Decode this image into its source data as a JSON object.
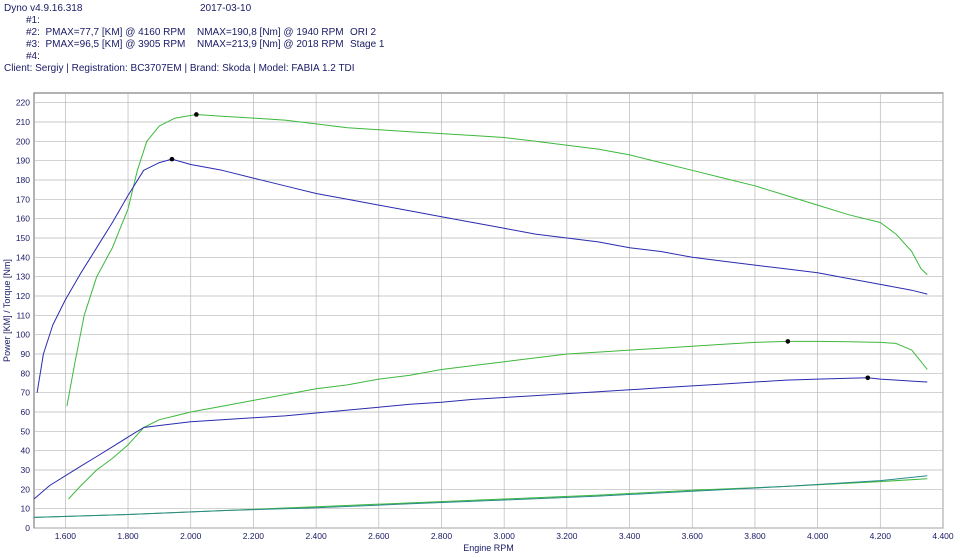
{
  "header": {
    "app": "Dyno v4.9.16.318",
    "date": "2017-03-10",
    "run1": "#1:",
    "run2_p": "#2:  PMAX=77,7 [KM] @ 4160 RPM",
    "run2_n": "NMAX=190,8 [Nm] @ 1940 RPM",
    "run2_name": "ORI 2",
    "run3_p": "#3:  PMAX=96,5 [KM] @ 3905 RPM",
    "run3_n": "NMAX=213,9 [Nm] @ 2018 RPM",
    "run3_name": "Stage 1",
    "run4": "#4:",
    "client": "Client: Sergiy | Registration: BC3707EM | Brand: Skoda | Model: FABIA 1.2 TDI"
  },
  "colors": {
    "stage1": "#3db83d",
    "ori2": "#2b2bb0",
    "loss": "#2a8a8a",
    "grid": "#b8b8b8",
    "text": "#1a1a66"
  },
  "chart_data": {
    "type": "line",
    "xlabel": "Engine RPM",
    "ylabel": "Power [KM] / Torque [Nm]",
    "xlim": [
      1500,
      4400
    ],
    "ylim": [
      0,
      225
    ],
    "xticks": [
      1600,
      1800,
      2000,
      2200,
      2400,
      2600,
      2800,
      3000,
      3200,
      3400,
      3600,
      3800,
      4000,
      4200,
      4400
    ],
    "xtick_labels": [
      "1.600",
      "1.800",
      "2.000",
      "2.200",
      "2.400",
      "2.600",
      "2.800",
      "3.000",
      "3.200",
      "3.400",
      "3.600",
      "3.800",
      "4.000",
      "4.200",
      "4.400"
    ],
    "yticks": [
      0,
      10,
      20,
      30,
      40,
      50,
      60,
      70,
      80,
      90,
      100,
      110,
      120,
      130,
      140,
      150,
      160,
      170,
      180,
      190,
      200,
      210,
      220
    ],
    "grid": true,
    "series": [
      {
        "id": "stage1-torque",
        "color_key": "stage1",
        "x": [
          1605,
          1630,
          1660,
          1700,
          1750,
          1800,
          1830,
          1860,
          1900,
          1950,
          2018,
          2100,
          2200,
          2300,
          2400,
          2500,
          2600,
          2700,
          2800,
          2900,
          3000,
          3100,
          3200,
          3300,
          3400,
          3500,
          3600,
          3700,
          3800,
          3900,
          4000,
          4100,
          4200,
          4250,
          4300,
          4330,
          4350
        ],
        "y": [
          63,
          85,
          110,
          130,
          145,
          165,
          185,
          200,
          208,
          212,
          213.9,
          213,
          212,
          211,
          209,
          207,
          206,
          205,
          204,
          203,
          202,
          200,
          198,
          196,
          193,
          189,
          185,
          181,
          177,
          172,
          167,
          162,
          158,
          152,
          143,
          134,
          131
        ]
      },
      {
        "id": "ori2-torque",
        "color_key": "ori2",
        "x": [
          1510,
          1530,
          1560,
          1600,
          1650,
          1700,
          1750,
          1800,
          1850,
          1900,
          1940,
          2000,
          2100,
          2200,
          2300,
          2400,
          2500,
          2600,
          2700,
          2800,
          2900,
          3000,
          3100,
          3200,
          3300,
          3400,
          3500,
          3600,
          3700,
          3800,
          3900,
          4000,
          4100,
          4200,
          4300,
          4350
        ],
        "y": [
          70,
          90,
          105,
          118,
          132,
          145,
          158,
          172,
          185,
          189,
          190.8,
          188,
          185,
          181,
          177,
          173,
          170,
          167,
          164,
          161,
          158,
          155,
          152,
          150,
          148,
          145,
          143,
          140,
          138,
          136,
          134,
          132,
          129,
          126,
          123,
          121
        ]
      },
      {
        "id": "stage1-power",
        "color_key": "stage1",
        "x": [
          1610,
          1650,
          1700,
          1750,
          1800,
          1850,
          1900,
          1950,
          2000,
          2100,
          2200,
          2300,
          2400,
          2500,
          2600,
          2700,
          2800,
          2900,
          3000,
          3100,
          3200,
          3300,
          3400,
          3500,
          3600,
          3700,
          3800,
          3905,
          4000,
          4100,
          4200,
          4250,
          4300,
          4330,
          4350
        ],
        "y": [
          15,
          22,
          30,
          36,
          43,
          52,
          56,
          58,
          60,
          63,
          66,
          69,
          72,
          74,
          77,
          79,
          82,
          84,
          86,
          88,
          90,
          91,
          92,
          93,
          94,
          95,
          96,
          96.5,
          96.5,
          96.3,
          96,
          95.5,
          92,
          86,
          82
        ]
      },
      {
        "id": "ori2-power",
        "color_key": "ori2",
        "x": [
          1500,
          1550,
          1600,
          1650,
          1700,
          1750,
          1800,
          1850,
          1900,
          1950,
          2000,
          2100,
          2200,
          2300,
          2400,
          2500,
          2600,
          2700,
          2800,
          2900,
          3000,
          3100,
          3200,
          3300,
          3400,
          3500,
          3600,
          3700,
          3800,
          3900,
          4000,
          4100,
          4160,
          4200,
          4300,
          4350
        ],
        "y": [
          15,
          22,
          27,
          32,
          37,
          42,
          47,
          52,
          53,
          54,
          55,
          56,
          57,
          58,
          59.5,
          61,
          62.5,
          64,
          65,
          66.5,
          67.5,
          68.5,
          69.5,
          70.5,
          71.5,
          72.5,
          73.5,
          74.5,
          75.5,
          76.5,
          77,
          77.5,
          77.7,
          77,
          76,
          75.5
        ]
      },
      {
        "id": "loss-stage1",
        "color_key": "stage1",
        "x": [
          1500,
          1800,
          2100,
          2400,
          2700,
          3000,
          3300,
          3600,
          3900,
          4200,
          4350
        ],
        "y": [
          5.5,
          7,
          9,
          11,
          13,
          15,
          17,
          19.5,
          21.5,
          24,
          25.5
        ]
      },
      {
        "id": "loss-ori2",
        "color_key": "loss",
        "x": [
          1500,
          1800,
          2100,
          2400,
          2700,
          3000,
          3300,
          3600,
          3900,
          4200,
          4350
        ],
        "y": [
          5.5,
          7,
          9,
          10.5,
          12.5,
          14.5,
          16.5,
          19,
          21.5,
          24.5,
          27
        ]
      }
    ],
    "markers": [
      {
        "x": 2018,
        "y": 213.9,
        "label": "NMAX stage1"
      },
      {
        "x": 1940,
        "y": 190.8,
        "label": "NMAX ori2"
      },
      {
        "x": 3905,
        "y": 96.5,
        "label": "PMAX stage1"
      },
      {
        "x": 4160,
        "y": 77.7,
        "label": "PMAX ori2"
      }
    ]
  }
}
